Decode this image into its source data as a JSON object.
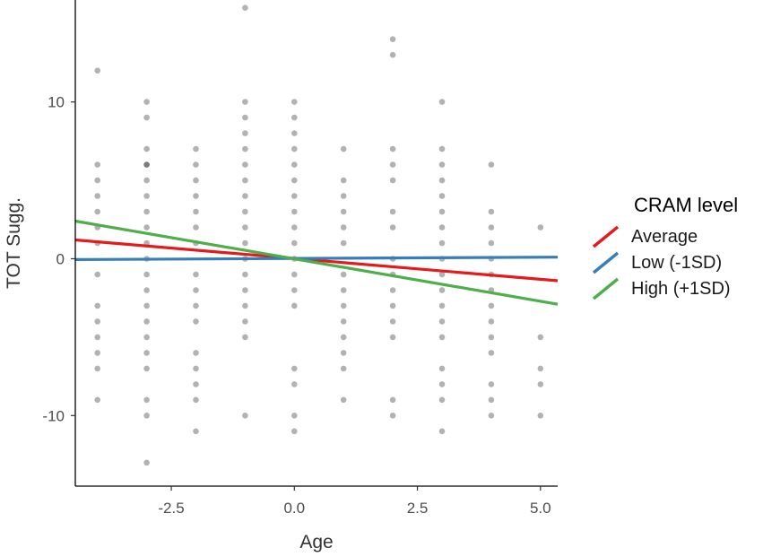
{
  "chart_data": {
    "type": "scatter",
    "title": "",
    "xlabel": "Age",
    "ylabel": "TOT Sugg.",
    "xlim": [
      -4.45,
      5.35
    ],
    "ylim": [
      -14.5,
      16.5
    ],
    "x_ticks": [
      -2.5,
      0.0,
      2.5,
      5.0
    ],
    "x_tick_labels": [
      "-2.5",
      "0.0",
      "2.5",
      "5.0"
    ],
    "y_ticks": [
      -10,
      0,
      10
    ],
    "y_tick_labels": [
      "-10",
      "0",
      "10"
    ],
    "grid": false,
    "legend": {
      "title": "CRAM level",
      "placement": "right",
      "entries": [
        {
          "label": "Average",
          "color": "#e41a1c"
        },
        {
          "label": "Low (-1SD)",
          "color": "#377eb8"
        },
        {
          "label": "High (+1SD)",
          "color": "#4daf4a"
        }
      ]
    },
    "series": [
      {
        "name": "Average",
        "color": "#e41a1c",
        "kind": "line",
        "x": [
          -4.45,
          5.35
        ],
        "y": [
          1.2,
          -1.4
        ]
      },
      {
        "name": "Low (-1SD)",
        "color": "#377eb8",
        "kind": "line",
        "x": [
          -4.45,
          5.35
        ],
        "y": [
          -0.05,
          0.1
        ]
      },
      {
        "name": "High (+1SD)",
        "color": "#4daf4a",
        "kind": "line",
        "x": [
          -4.45,
          5.35
        ],
        "y": [
          2.4,
          -2.9
        ]
      }
    ],
    "points": {
      "color": "#000000",
      "opacity": 0.3,
      "data": [
        [
          -4,
          12
        ],
        [
          -4,
          6
        ],
        [
          -4,
          5
        ],
        [
          -4,
          4
        ],
        [
          -4,
          3
        ],
        [
          -4,
          2
        ],
        [
          -4,
          1
        ],
        [
          -4,
          -1
        ],
        [
          -4,
          -3
        ],
        [
          -4,
          -4
        ],
        [
          -4,
          -5
        ],
        [
          -4,
          -6
        ],
        [
          -4,
          -7
        ],
        [
          -4,
          -9
        ],
        [
          -3,
          10
        ],
        [
          -3,
          9
        ],
        [
          -3,
          7
        ],
        [
          -3,
          6
        ],
        [
          -3,
          6
        ],
        [
          -3,
          5
        ],
        [
          -3,
          4
        ],
        [
          -3,
          3
        ],
        [
          -3,
          2
        ],
        [
          -3,
          1
        ],
        [
          -3,
          0
        ],
        [
          -3,
          -1
        ],
        [
          -3,
          -2
        ],
        [
          -3,
          -3
        ],
        [
          -3,
          -4
        ],
        [
          -3,
          -5
        ],
        [
          -3,
          -6
        ],
        [
          -3,
          -7
        ],
        [
          -3,
          -9
        ],
        [
          -3,
          -10
        ],
        [
          -3,
          -13
        ],
        [
          -2,
          7
        ],
        [
          -2,
          6
        ],
        [
          -2,
          5
        ],
        [
          -2,
          4
        ],
        [
          -2,
          3
        ],
        [
          -2,
          2
        ],
        [
          -2,
          1
        ],
        [
          -2,
          -1
        ],
        [
          -2,
          -2
        ],
        [
          -2,
          -3
        ],
        [
          -2,
          -4
        ],
        [
          -2,
          -6
        ],
        [
          -2,
          -7
        ],
        [
          -2,
          -8
        ],
        [
          -2,
          -9
        ],
        [
          -2,
          -11
        ],
        [
          -1,
          16
        ],
        [
          -1,
          10
        ],
        [
          -1,
          9
        ],
        [
          -1,
          8
        ],
        [
          -1,
          7
        ],
        [
          -1,
          6
        ],
        [
          -1,
          5
        ],
        [
          -1,
          4
        ],
        [
          -1,
          3
        ],
        [
          -1,
          2
        ],
        [
          -1,
          1
        ],
        [
          -1,
          0
        ],
        [
          -1,
          -1
        ],
        [
          -1,
          -2
        ],
        [
          -1,
          -3
        ],
        [
          -1,
          -4
        ],
        [
          -1,
          -5
        ],
        [
          -1,
          -10
        ],
        [
          0,
          10
        ],
        [
          0,
          9
        ],
        [
          0,
          8
        ],
        [
          0,
          7
        ],
        [
          0,
          6
        ],
        [
          0,
          5
        ],
        [
          0,
          4
        ],
        [
          0,
          3
        ],
        [
          0,
          2
        ],
        [
          0,
          1
        ],
        [
          0,
          0
        ],
        [
          0,
          -1
        ],
        [
          0,
          -2
        ],
        [
          0,
          -3
        ],
        [
          0,
          -7
        ],
        [
          0,
          -8
        ],
        [
          0,
          -10
        ],
        [
          0,
          -11
        ],
        [
          1,
          7
        ],
        [
          1,
          5
        ],
        [
          1,
          4
        ],
        [
          1,
          3
        ],
        [
          1,
          2
        ],
        [
          1,
          1
        ],
        [
          1,
          -1
        ],
        [
          1,
          -2
        ],
        [
          1,
          -3
        ],
        [
          1,
          -4
        ],
        [
          1,
          -5
        ],
        [
          1,
          -6
        ],
        [
          1,
          -7
        ],
        [
          1,
          -9
        ],
        [
          2,
          14
        ],
        [
          2,
          13
        ],
        [
          2,
          7
        ],
        [
          2,
          6
        ],
        [
          2,
          5
        ],
        [
          2,
          3
        ],
        [
          2,
          2
        ],
        [
          2,
          0
        ],
        [
          2,
          -1
        ],
        [
          2,
          -2
        ],
        [
          2,
          -3
        ],
        [
          2,
          -4
        ],
        [
          2,
          -5
        ],
        [
          2,
          -9
        ],
        [
          2,
          -10
        ],
        [
          3,
          10
        ],
        [
          3,
          7
        ],
        [
          3,
          6
        ],
        [
          3,
          5
        ],
        [
          3,
          4
        ],
        [
          3,
          3
        ],
        [
          3,
          2
        ],
        [
          3,
          1
        ],
        [
          3,
          0
        ],
        [
          3,
          -1
        ],
        [
          3,
          -2
        ],
        [
          3,
          -3
        ],
        [
          3,
          -4
        ],
        [
          3,
          -5
        ],
        [
          3,
          -7
        ],
        [
          3,
          -8
        ],
        [
          3,
          -9
        ],
        [
          3,
          -11
        ],
        [
          4,
          6
        ],
        [
          4,
          3
        ],
        [
          4,
          2
        ],
        [
          4,
          1
        ],
        [
          4,
          0
        ],
        [
          4,
          -1
        ],
        [
          4,
          -2
        ],
        [
          4,
          -3
        ],
        [
          4,
          -4
        ],
        [
          4,
          -5
        ],
        [
          4,
          -6
        ],
        [
          4,
          -8
        ],
        [
          4,
          -9
        ],
        [
          4,
          -10
        ],
        [
          5,
          2
        ],
        [
          5,
          -5
        ],
        [
          5,
          -7
        ],
        [
          5,
          -8
        ],
        [
          5,
          -10
        ]
      ]
    }
  }
}
